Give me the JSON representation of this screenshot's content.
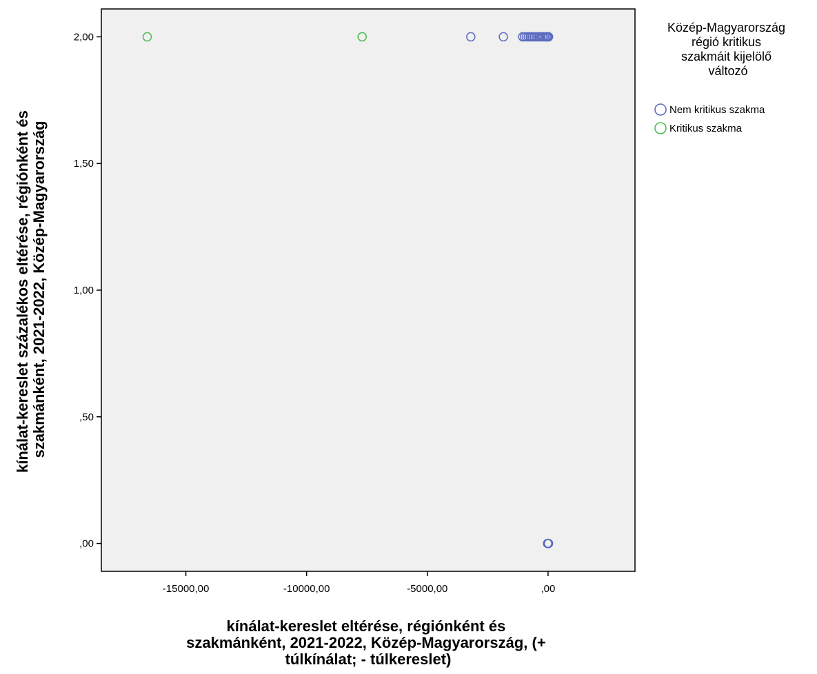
{
  "chart_data": {
    "type": "scatter",
    "xlabel_lines": [
      "kínálat-kereslet eltérése, régiónként és",
      "szakmánként, 2021-2022, Közép-Magyarország, (+",
      "túlkínálat; - túlkereslet)"
    ],
    "ylabel_lines": [
      "kínálat-kereslet százalékos eltérése, régiónként és",
      "szakmánként, 2021-2022, Közép-Magyarország"
    ],
    "xlim": [
      -18500,
      3600
    ],
    "ylim": [
      -0.11,
      2.11
    ],
    "x_ticks": [
      {
        "value": -15000,
        "label": "-15000,00"
      },
      {
        "value": -10000,
        "label": "-10000,00"
      },
      {
        "value": -5000,
        "label": "-5000,00"
      },
      {
        "value": 0,
        "label": ",00"
      }
    ],
    "y_ticks": [
      {
        "value": 0,
        "label": ",00"
      },
      {
        "value": 0.5,
        "label": ",50"
      },
      {
        "value": 1.0,
        "label": "1,00"
      },
      {
        "value": 1.5,
        "label": "1,50"
      },
      {
        "value": 2.0,
        "label": "2,00"
      }
    ],
    "grid": false,
    "legend": {
      "title_lines": [
        "Közép-Magyarország",
        "régió kritikus",
        "szakmáit kijelölő",
        "változó"
      ],
      "placement": "right"
    },
    "series": [
      {
        "name": "Nem kritikus szakma",
        "color": "#5b6bbf",
        "points": [
          {
            "x": -3200,
            "y": 2.0
          },
          {
            "x": -1850,
            "y": 2.0
          },
          {
            "x": -1050,
            "y": 2.0
          },
          {
            "x": -980,
            "y": 2.0
          },
          {
            "x": -900,
            "y": 2.0
          },
          {
            "x": -820,
            "y": 2.0
          },
          {
            "x": -740,
            "y": 2.0
          },
          {
            "x": -660,
            "y": 2.0
          },
          {
            "x": -580,
            "y": 2.0
          },
          {
            "x": -500,
            "y": 2.0
          },
          {
            "x": -430,
            "y": 2.0
          },
          {
            "x": -360,
            "y": 2.0
          },
          {
            "x": -290,
            "y": 2.0
          },
          {
            "x": -220,
            "y": 2.0
          },
          {
            "x": -160,
            "y": 2.0
          },
          {
            "x": -100,
            "y": 2.0
          },
          {
            "x": -50,
            "y": 2.0
          },
          {
            "x": -10,
            "y": 2.0
          },
          {
            "x": 20,
            "y": 2.0
          },
          {
            "x": -20,
            "y": 0.0
          },
          {
            "x": 0,
            "y": 0.0
          },
          {
            "x": 20,
            "y": 0.0
          },
          {
            "x": 0,
            "y": 0.0
          }
        ]
      },
      {
        "name": "Kritikus szakma",
        "color": "#4cbb4c",
        "points": [
          {
            "x": -16600,
            "y": 2.0
          },
          {
            "x": -7700,
            "y": 2.0
          }
        ]
      }
    ]
  }
}
